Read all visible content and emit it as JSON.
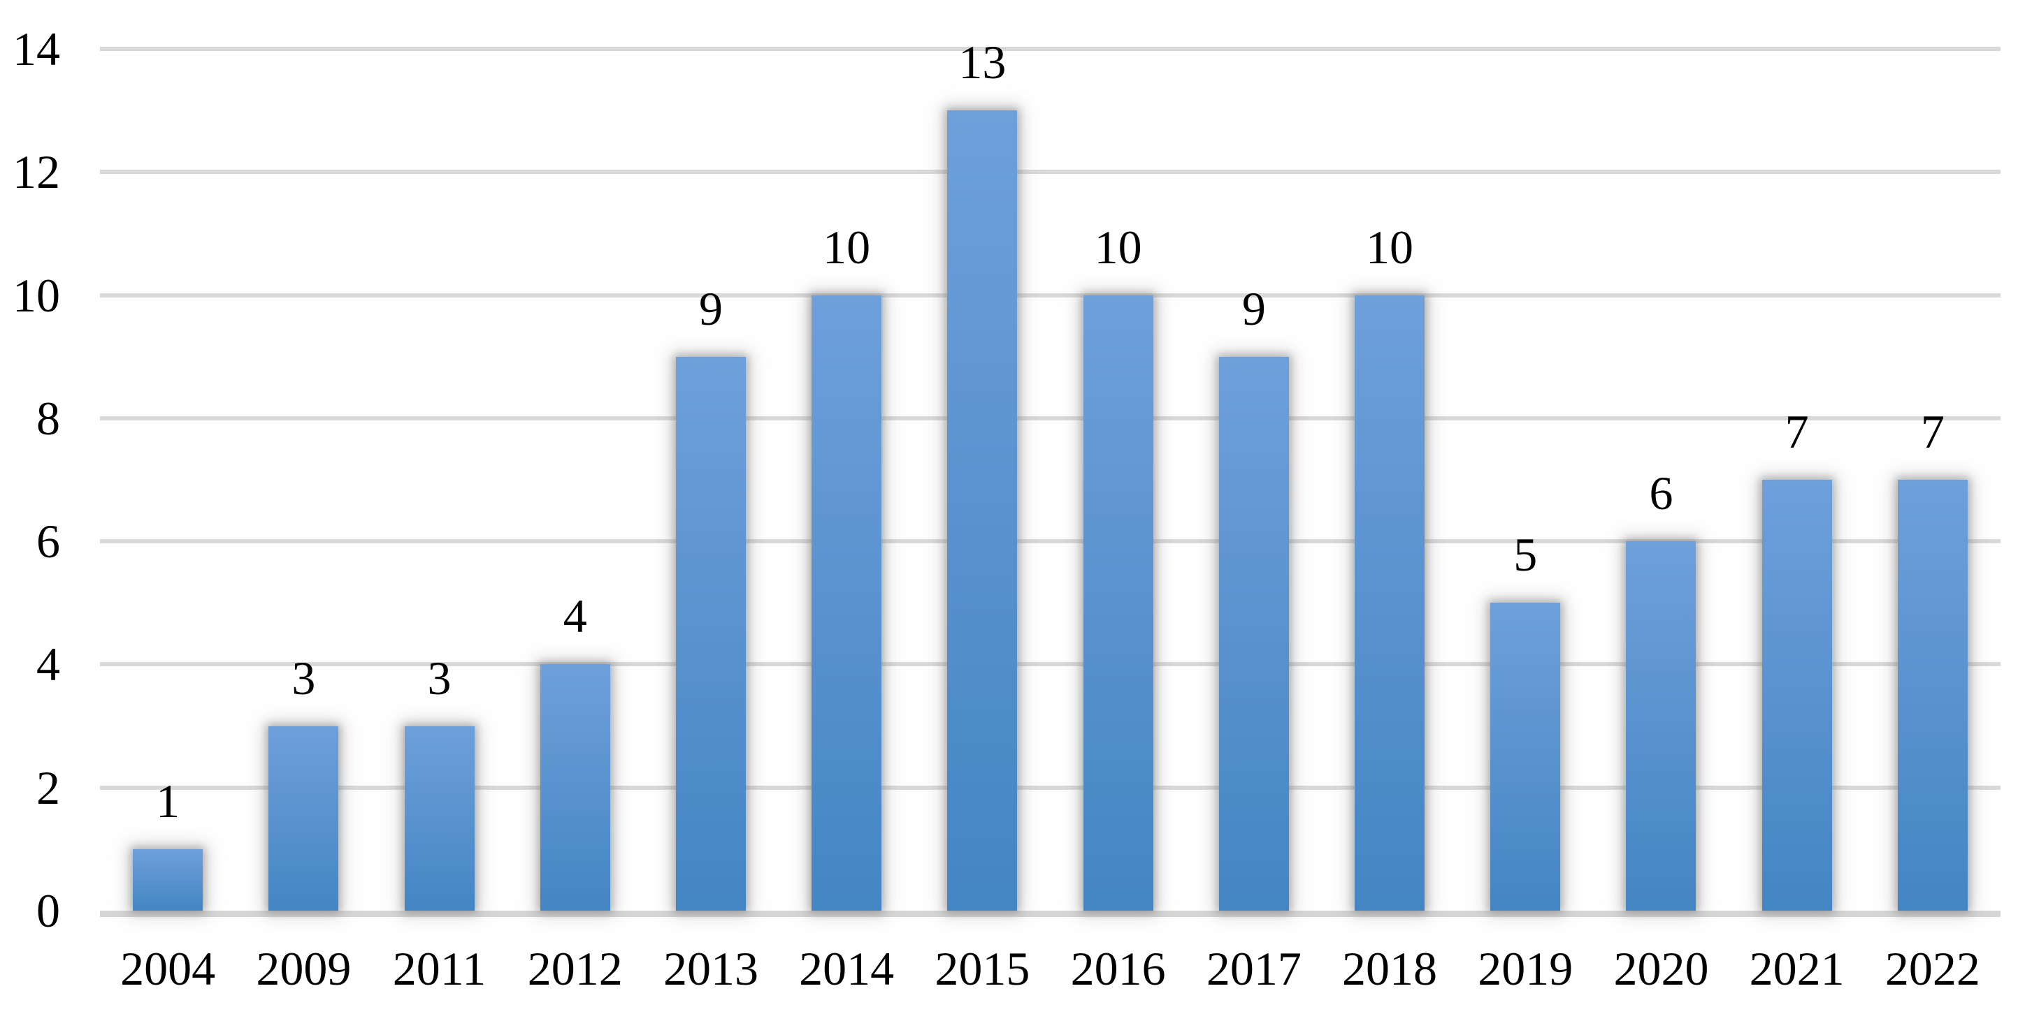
{
  "chart_data": {
    "type": "bar",
    "title": "",
    "xlabel": "",
    "ylabel": "",
    "categories": [
      "2004",
      "2009",
      "2011",
      "2012",
      "2013",
      "2014",
      "2015",
      "2016",
      "2017",
      "2018",
      "2019",
      "2020",
      "2021",
      "2022"
    ],
    "values": [
      1,
      3,
      3,
      4,
      9,
      10,
      13,
      10,
      9,
      10,
      5,
      6,
      7,
      7
    ],
    "value_labels": [
      "1",
      "3",
      "3",
      "4",
      "9",
      "10",
      "13",
      "10",
      "9",
      "10",
      "5",
      "6",
      "7",
      "7"
    ],
    "ylim": [
      0,
      14
    ],
    "yticks": [
      0,
      2,
      4,
      6,
      8,
      10,
      12,
      14
    ],
    "ytick_labels": [
      "0",
      "2",
      "4",
      "6",
      "8",
      "10",
      "12",
      "14"
    ],
    "grid": "horizontal gridlines every 2 units",
    "legend_position": "none",
    "data_labels_position": "above bars",
    "colors": {
      "bar_gradient_top": "#6EA0DA",
      "bar_gradient_bottom": "#4485C4",
      "gridline": "#D9D9D9",
      "axis_line": "#D6D6D6",
      "label_text": "#000000",
      "background": "#FFFFFF"
    }
  }
}
